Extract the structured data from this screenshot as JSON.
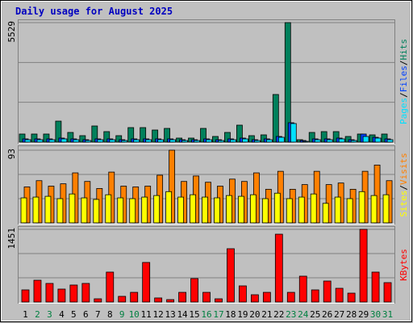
{
  "title": "Daily usage for August 2025",
  "legend_separator": "/",
  "chart_data": [
    {
      "type": "bar",
      "ylim": [
        0,
        5529
      ],
      "yticks": [
        5529
      ],
      "grid_divisions": 3,
      "series": [
        {
          "name": "Pages",
          "color": "#00e0ff",
          "values": [
            112,
            112,
            112,
            150,
            112,
            75,
            112,
            112,
            75,
            112,
            112,
            112,
            112,
            75,
            75,
            112,
            75,
            112,
            150,
            75,
            112,
            224,
            860,
            37,
            112,
            112,
            150,
            75,
            262,
            187,
            112
          ]
        },
        {
          "name": "Files",
          "color": "#0040ff",
          "values": [
            150,
            150,
            150,
            187,
            150,
            112,
            150,
            150,
            112,
            150,
            150,
            150,
            150,
            112,
            112,
            150,
            112,
            150,
            187,
            112,
            150,
            262,
            897,
            75,
            150,
            150,
            187,
            112,
            374,
            224,
            150
          ]
        },
        {
          "name": "Hits",
          "color": "#00805c",
          "values": [
            374,
            374,
            374,
            971,
            448,
            299,
            747,
            486,
            299,
            672,
            672,
            560,
            635,
            187,
            187,
            635,
            262,
            448,
            785,
            299,
            336,
            2204,
            5529,
            112,
            448,
            486,
            486,
            262,
            374,
            336,
            374
          ]
        }
      ]
    },
    {
      "type": "bar",
      "ylim": [
        0,
        93
      ],
      "yticks": [
        93
      ],
      "grid_divisions": 3,
      "series": [
        {
          "name": "Sites",
          "color": "#ffff00",
          "values": [
            32,
            33,
            34,
            31,
            37,
            32,
            30,
            36,
            32,
            31,
            33,
            35,
            40,
            33,
            36,
            33,
            32,
            35,
            34,
            36,
            31,
            38,
            31,
            33,
            37,
            25,
            33,
            31,
            40,
            35,
            36
          ]
        },
        {
          "name": "Visits",
          "color": "#ff8000",
          "values": [
            46,
            54,
            47,
            50,
            64,
            53,
            44,
            65,
            47,
            46,
            47,
            61,
            93,
            53,
            60,
            52,
            47,
            56,
            53,
            64,
            43,
            66,
            43,
            49,
            66,
            49,
            51,
            43,
            66,
            74,
            54
          ]
        }
      ]
    },
    {
      "type": "bar",
      "ylim": [
        0,
        1451
      ],
      "yticks": [
        1451
      ],
      "grid_divisions": 3,
      "categories": [
        "1",
        "2",
        "3",
        "4",
        "5",
        "6",
        "7",
        "8",
        "9",
        "10",
        "11",
        "12",
        "13",
        "14",
        "15",
        "16",
        "17",
        "18",
        "19",
        "20",
        "21",
        "22",
        "23",
        "24",
        "25",
        "26",
        "27",
        "28",
        "29",
        "30",
        "31"
      ],
      "category_colors": [
        "#000000",
        "#008040",
        "#008040",
        "#000000",
        "#000000",
        "#000000",
        "#000000",
        "#000000",
        "#008040",
        "#008040",
        "#000000",
        "#000000",
        "#000000",
        "#000000",
        "#000000",
        "#008040",
        "#008040",
        "#000000",
        "#000000",
        "#000000",
        "#000000",
        "#000000",
        "#008040",
        "#008040",
        "#000000",
        "#000000",
        "#000000",
        "#000000",
        "#000000",
        "#008040",
        "#008040"
      ],
      "series": [
        {
          "name": "KBytes",
          "color": "#ff0000",
          "values": [
            242,
            435,
            371,
            258,
            339,
            371,
            64,
            597,
            113,
            193,
            790,
            81,
            48,
            193,
            468,
            193,
            64,
            1064,
            322,
            145,
            193,
            1354,
            193,
            516,
            242,
            419,
            274,
            177,
            1451,
            597,
            387
          ]
        }
      ]
    }
  ]
}
